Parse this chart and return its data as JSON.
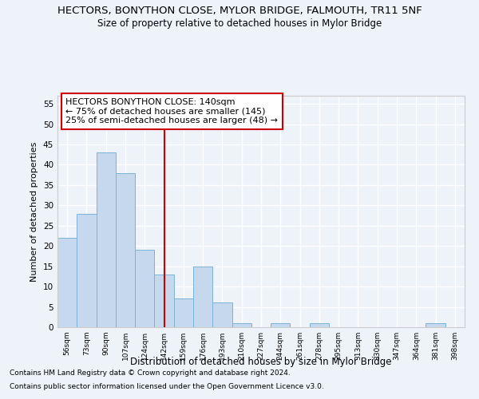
{
  "title": "HECTORS, BONYTHON CLOSE, MYLOR BRIDGE, FALMOUTH, TR11 5NF",
  "subtitle": "Size of property relative to detached houses in Mylor Bridge",
  "xlabel": "Distribution of detached houses by size in Mylor Bridge",
  "ylabel": "Number of detached properties",
  "categories": [
    "56sqm",
    "73sqm",
    "90sqm",
    "107sqm",
    "124sqm",
    "142sqm",
    "159sqm",
    "176sqm",
    "193sqm",
    "210sqm",
    "227sqm",
    "244sqm",
    "261sqm",
    "278sqm",
    "295sqm",
    "313sqm",
    "330sqm",
    "347sqm",
    "364sqm",
    "381sqm",
    "398sqm"
  ],
  "values": [
    22,
    28,
    43,
    38,
    19,
    13,
    7,
    15,
    6,
    1,
    0,
    1,
    0,
    1,
    0,
    0,
    0,
    0,
    0,
    1,
    0
  ],
  "bar_color": "#c5d8ed",
  "bar_edge_color": "#7ab4d8",
  "vline_x_index": 5,
  "vline_color": "#cc0000",
  "annotation_title": "HECTORS BONYTHON CLOSE: 140sqm",
  "annotation_line1": "← 75% of detached houses are smaller (145)",
  "annotation_line2": "25% of semi-detached houses are larger (48) →",
  "annotation_box_color": "#ffffff",
  "annotation_box_edge_color": "#cc0000",
  "ylim": [
    0,
    57
  ],
  "yticks": [
    0,
    5,
    10,
    15,
    20,
    25,
    30,
    35,
    40,
    45,
    50,
    55
  ],
  "footnote1": "Contains HM Land Registry data © Crown copyright and database right 2024.",
  "footnote2": "Contains public sector information licensed under the Open Government Licence v3.0.",
  "background_color": "#eef2f9",
  "grid_color": "#ffffff",
  "title_fontsize": 9.5,
  "subtitle_fontsize": 8.5,
  "ann_fontsize": 8.0
}
